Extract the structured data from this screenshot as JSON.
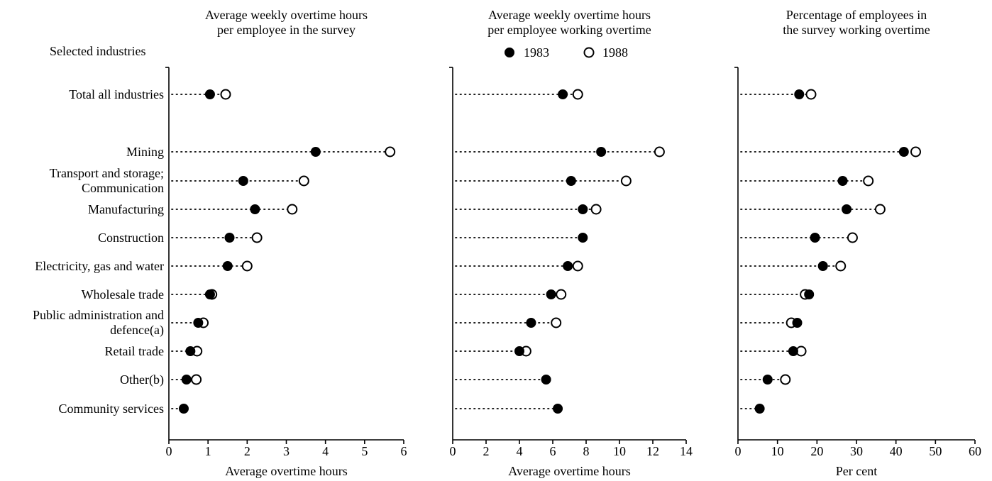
{
  "y_axis_title": "Selected industries",
  "legend": {
    "filled_label": "1983",
    "open_label": "1988"
  },
  "categories": [
    "Total all industries",
    "Mining",
    "Transport and storage;\nCommunication",
    "Manufacturing",
    "Construction",
    "Electricity, gas and water",
    "Wholesale trade",
    "Public administration and\ndefence(a)",
    "Retail trade",
    "Other(b)",
    "Community services"
  ],
  "chart_data": [
    {
      "type": "scatter",
      "title": "Average weekly overtime hours\nper employee in the survey",
      "xlabel": "Average overtime hours",
      "xlim": [
        0,
        6
      ],
      "xticks": [
        0,
        1,
        2,
        3,
        4,
        5,
        6
      ],
      "series": [
        {
          "name": "1983",
          "values": [
            1.05,
            3.75,
            1.9,
            2.2,
            1.55,
            1.5,
            1.05,
            0.75,
            0.55,
            0.45,
            0.38
          ]
        },
        {
          "name": "1988",
          "values": [
            1.45,
            5.65,
            3.45,
            3.15,
            2.25,
            2.0,
            1.1,
            0.88,
            0.72,
            0.7,
            null
          ]
        }
      ]
    },
    {
      "type": "scatter",
      "title": "Average weekly overtime hours\nper employee working overtime",
      "xlabel": "Average overtime hours",
      "xlim": [
        0,
        14
      ],
      "xticks": [
        0,
        2,
        4,
        6,
        8,
        10,
        12,
        14
      ],
      "series": [
        {
          "name": "1983",
          "values": [
            6.6,
            8.9,
            7.1,
            7.8,
            7.8,
            6.9,
            5.9,
            4.7,
            4.0,
            5.6,
            6.3
          ]
        },
        {
          "name": "1988",
          "values": [
            7.5,
            12.4,
            10.4,
            8.6,
            null,
            7.5,
            6.5,
            6.2,
            4.4,
            null,
            null
          ]
        }
      ]
    },
    {
      "type": "scatter",
      "title": "Percentage of employees in\nthe survey working overtime",
      "xlabel": "Per cent",
      "xlim": [
        0,
        60
      ],
      "xticks": [
        0,
        10,
        20,
        30,
        40,
        50,
        60
      ],
      "series": [
        {
          "name": "1983",
          "values": [
            15.5,
            42.0,
            26.5,
            27.5,
            19.5,
            21.5,
            18.0,
            15.0,
            14.0,
            7.5,
            5.5
          ]
        },
        {
          "name": "1988",
          "values": [
            18.5,
            45.0,
            33.0,
            36.0,
            29.0,
            26.0,
            17.0,
            13.5,
            16.0,
            12.0,
            null
          ]
        }
      ]
    }
  ]
}
